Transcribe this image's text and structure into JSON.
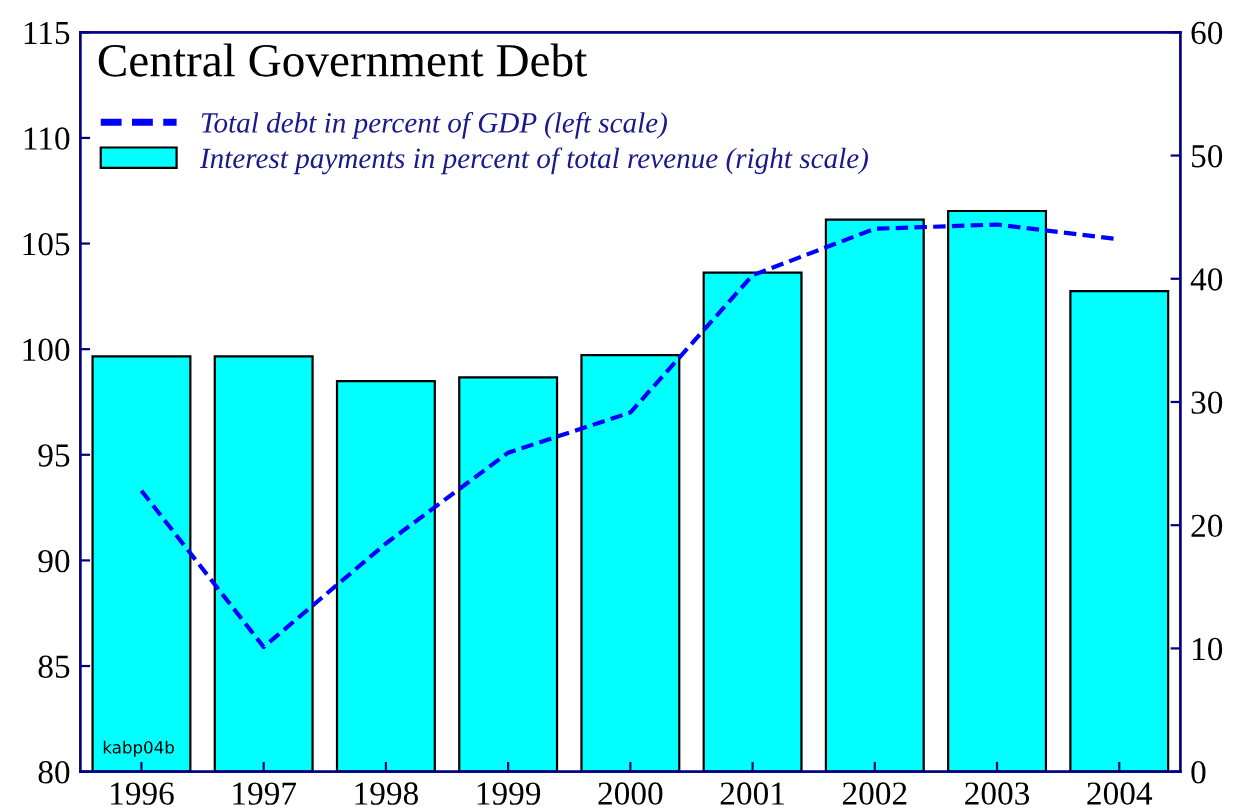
{
  "chart_data": {
    "type": "bar",
    "title": "Central Government Debt",
    "categories": [
      "1996",
      "1997",
      "1998",
      "1999",
      "2000",
      "2001",
      "2002",
      "2003",
      "2004"
    ],
    "series": [
      {
        "name": "Total debt in percent of GDP (left scale)",
        "type": "line",
        "color": "#0000ff",
        "line_style": "dashed",
        "values": [
          93.3,
          85.9,
          90.8,
          95.1,
          97.0,
          103.5,
          105.7,
          105.9,
          105.2
        ]
      },
      {
        "name": "Interest payments in percent of total revenue (right scale)",
        "axis": "y2",
        "color": "#00ffff",
        "values": [
          33.7,
          33.7,
          31.7,
          32.0,
          33.8,
          40.5,
          44.8,
          45.5,
          39.0
        ]
      }
    ],
    "ylim": [
      80,
      115
    ],
    "yticks": [
      80,
      85,
      90,
      95,
      100,
      105,
      110,
      115
    ],
    "y2lim": [
      0,
      60
    ],
    "y2ticks": [
      0,
      10,
      20,
      30,
      40,
      50,
      60
    ],
    "annotations": [
      "kabp04b"
    ],
    "legend": "top left",
    "grid": false
  }
}
